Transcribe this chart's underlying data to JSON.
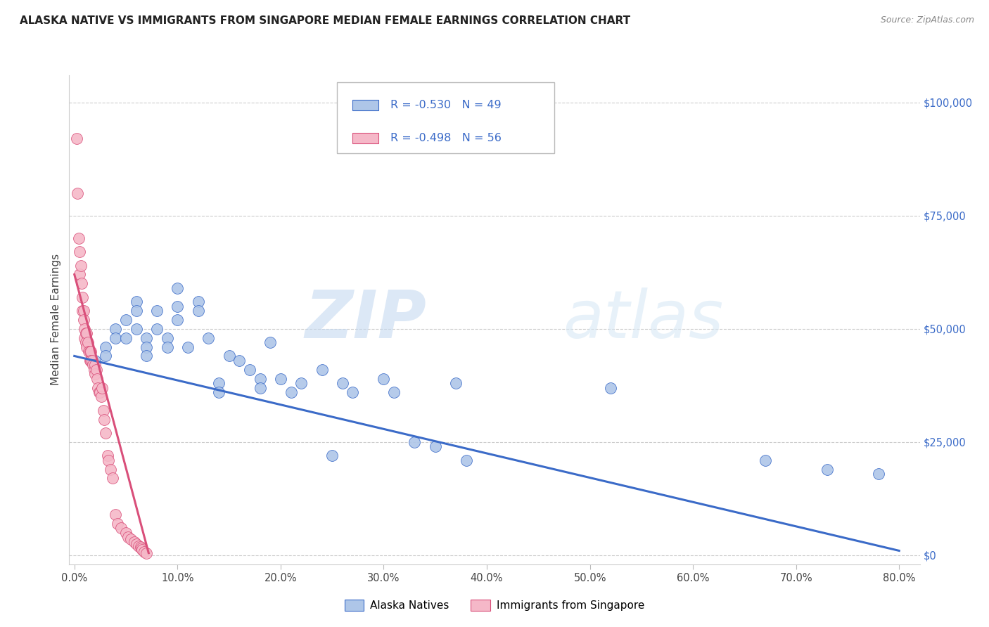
{
  "title": "ALASKA NATIVE VS IMMIGRANTS FROM SINGAPORE MEDIAN FEMALE EARNINGS CORRELATION CHART",
  "source": "Source: ZipAtlas.com",
  "xlabel_ticks": [
    "0.0%",
    "10.0%",
    "20.0%",
    "30.0%",
    "40.0%",
    "50.0%",
    "60.0%",
    "70.0%",
    "80.0%"
  ],
  "xlabel_tick_vals": [
    0.0,
    0.1,
    0.2,
    0.3,
    0.4,
    0.5,
    0.6,
    0.7,
    0.8
  ],
  "ylabel_ticks": [
    "$100,000",
    "$75,000",
    "$50,000",
    "$25,000",
    "$0"
  ],
  "ylabel_tick_vals": [
    100000,
    75000,
    50000,
    25000,
    0
  ],
  "ylabel_label": "Median Female Earnings",
  "legend_blue_r": "R = -0.530",
  "legend_blue_n": "N = 49",
  "legend_pink_r": "R = -0.498",
  "legend_pink_n": "N = 56",
  "watermark_zip": "ZIP",
  "watermark_atlas": "atlas",
  "blue_color": "#aec6e8",
  "pink_color": "#f5b8c8",
  "blue_line_color": "#3b6bc8",
  "pink_line_color": "#d94f7a",
  "blue_scatter_x": [
    0.02,
    0.03,
    0.03,
    0.04,
    0.04,
    0.05,
    0.05,
    0.06,
    0.06,
    0.06,
    0.07,
    0.07,
    0.07,
    0.08,
    0.08,
    0.09,
    0.09,
    0.1,
    0.1,
    0.1,
    0.11,
    0.12,
    0.12,
    0.13,
    0.14,
    0.14,
    0.15,
    0.16,
    0.17,
    0.18,
    0.18,
    0.19,
    0.2,
    0.21,
    0.22,
    0.24,
    0.25,
    0.26,
    0.27,
    0.3,
    0.31,
    0.33,
    0.35,
    0.37,
    0.38,
    0.52,
    0.67,
    0.73,
    0.78
  ],
  "blue_scatter_y": [
    43000,
    46000,
    44000,
    50000,
    48000,
    52000,
    48000,
    56000,
    54000,
    50000,
    48000,
    46000,
    44000,
    54000,
    50000,
    48000,
    46000,
    59000,
    55000,
    52000,
    46000,
    56000,
    54000,
    48000,
    38000,
    36000,
    44000,
    43000,
    41000,
    39000,
    37000,
    47000,
    39000,
    36000,
    38000,
    41000,
    22000,
    38000,
    36000,
    39000,
    36000,
    25000,
    24000,
    38000,
    21000,
    37000,
    21000,
    19000,
    18000
  ],
  "pink_scatter_x": [
    0.002,
    0.003,
    0.004,
    0.005,
    0.005,
    0.006,
    0.007,
    0.008,
    0.008,
    0.009,
    0.009,
    0.01,
    0.01,
    0.011,
    0.011,
    0.012,
    0.012,
    0.013,
    0.014,
    0.015,
    0.015,
    0.016,
    0.016,
    0.017,
    0.018,
    0.019,
    0.02,
    0.02,
    0.021,
    0.022,
    0.023,
    0.024,
    0.025,
    0.026,
    0.027,
    0.028,
    0.029,
    0.03,
    0.032,
    0.033,
    0.035,
    0.037,
    0.04,
    0.042,
    0.045,
    0.05,
    0.052,
    0.055,
    0.058,
    0.06,
    0.062,
    0.064,
    0.065,
    0.066,
    0.068,
    0.07
  ],
  "pink_scatter_y": [
    92000,
    80000,
    70000,
    67000,
    62000,
    64000,
    60000,
    57000,
    54000,
    54000,
    52000,
    50000,
    48000,
    49000,
    47000,
    49000,
    46000,
    47000,
    45000,
    45000,
    43000,
    45000,
    43000,
    43000,
    42000,
    41000,
    42000,
    40000,
    41000,
    39000,
    37000,
    36000,
    36000,
    35000,
    37000,
    32000,
    30000,
    27000,
    22000,
    21000,
    19000,
    17000,
    9000,
    7000,
    6000,
    5000,
    4000,
    3500,
    3000,
    2500,
    2000,
    1800,
    1500,
    1200,
    800,
    500
  ],
  "blue_line_x": [
    0.0,
    0.8
  ],
  "blue_line_y": [
    44000,
    1000
  ],
  "pink_line_x": [
    0.0,
    0.072
  ],
  "pink_line_y": [
    62000,
    500
  ],
  "xlim": [
    -0.005,
    0.82
  ],
  "ylim": [
    -2000,
    106000
  ],
  "figsize": [
    14.06,
    8.92
  ],
  "dpi": 100
}
